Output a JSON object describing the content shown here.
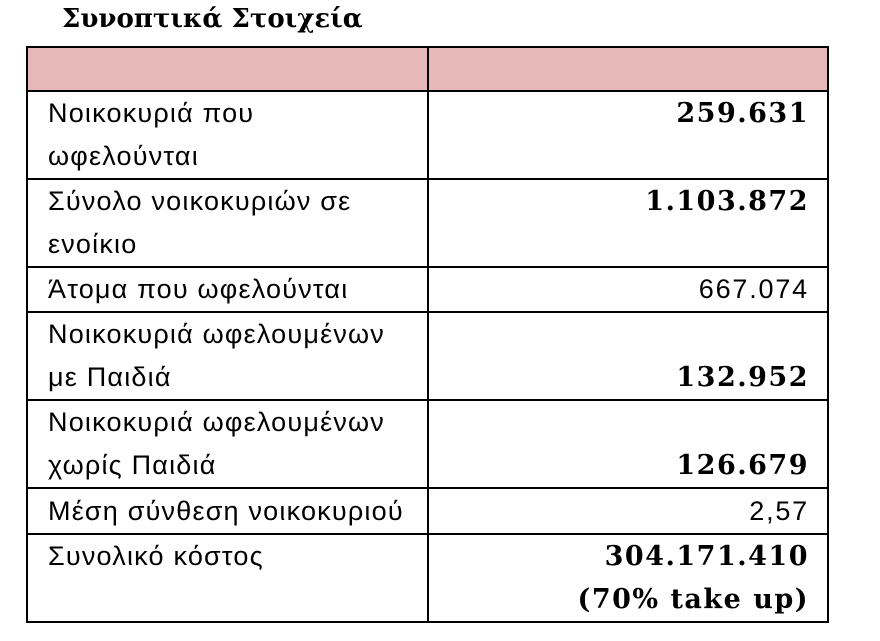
{
  "header": {
    "title": "Συνοπτικά Στοιχεία"
  },
  "table": {
    "rows": [
      [
        "Νοικοκυριά που ωφελούνται",
        "259.631"
      ],
      [
        "Σύνολο νοικοκυριών σε ενοίκιο",
        "1.103.872"
      ],
      [
        "Άτομα που ωφελούνται",
        "667.074"
      ],
      [
        "Νοικοκυριά ωφελουμένων με Παιδιά",
        "132.952"
      ],
      [
        "Νοικοκυριά ωφελουμένων χωρίς Παιδιά",
        "126.679"
      ],
      [
        "Μέση σύνθεση νοικοκυριού",
        "2,57"
      ],
      [
        "Συνολικό κόστος",
        "304.171.410",
        "(70% take up)"
      ]
    ]
  }
}
